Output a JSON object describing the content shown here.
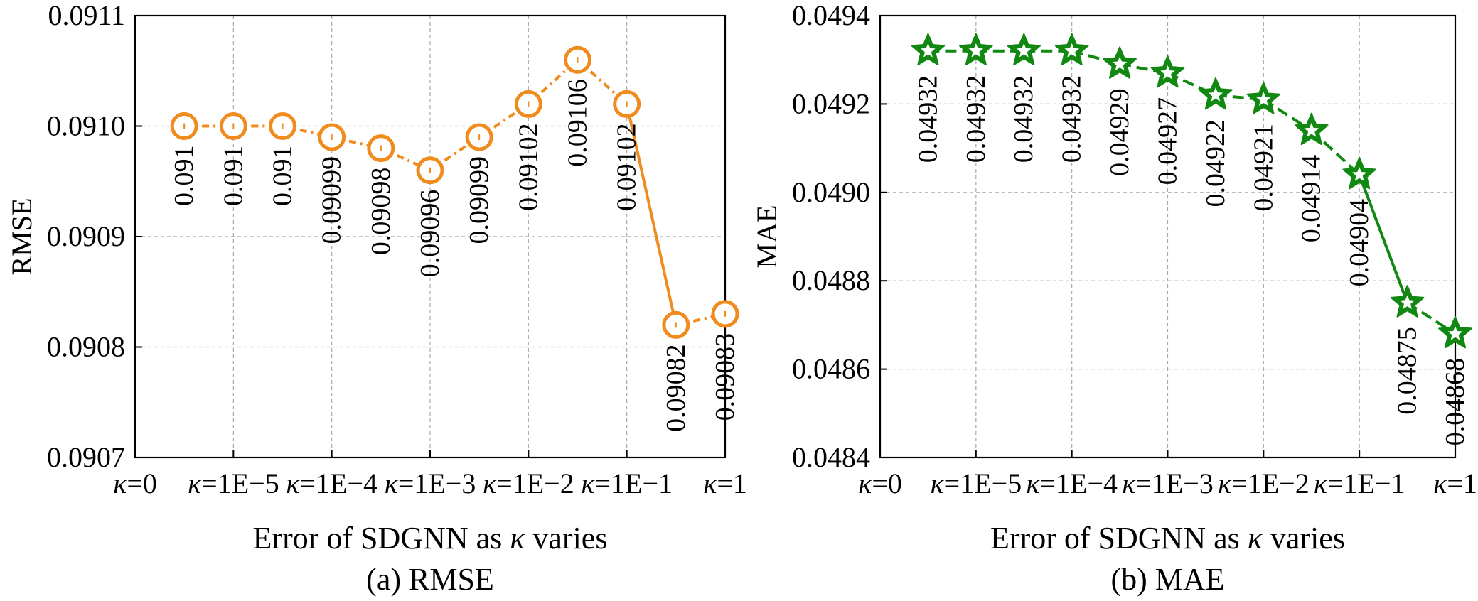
{
  "chart_data": [
    {
      "type": "line",
      "caption": "(a) RMSE",
      "xlabel": "Error of SDGNN as κ varies",
      "ylabel": "RMSE",
      "ylim": [
        0.0907,
        0.0911
      ],
      "yticks": [
        "0.0907",
        "0.0908",
        "0.0909",
        "0.0910",
        "0.0911"
      ],
      "xticks": [
        "κ=0",
        "κ=1E−5",
        "κ=1E−4",
        "κ=1E−3",
        "κ=1E−2",
        "κ=1E−1",
        "κ=1"
      ],
      "grid": true,
      "marker": "circle",
      "color": "#f08c1e",
      "series": [
        {
          "x": [
            0.5,
            1,
            1.5,
            2,
            2.5,
            3,
            3.5,
            4,
            4.5,
            5,
            5.5,
            6
          ],
          "values": [
            0.091,
            0.091,
            0.091,
            0.09099,
            0.09098,
            0.09096,
            0.09099,
            0.09102,
            0.09106,
            0.09102,
            0.09082,
            0.09083
          ],
          "labels": [
            "0.091",
            "0.091",
            "0.091",
            "0.09099",
            "0.09098",
            "0.09096",
            "0.09099",
            "0.09102",
            "0.09106",
            "0.09102",
            "0.09082",
            "0.09083"
          ]
        }
      ]
    },
    {
      "type": "line",
      "caption": "(b) MAE",
      "xlabel": "Error of SDGNN as κ varies",
      "ylabel": "MAE",
      "ylim": [
        0.0484,
        0.0494
      ],
      "yticks": [
        "0.0484",
        "0.0486",
        "0.0488",
        "0.0490",
        "0.0492",
        "0.0494"
      ],
      "xticks": [
        "κ=0",
        "κ=1E−5",
        "κ=1E−4",
        "κ=1E−3",
        "κ=1E−2",
        "κ=1E−1",
        "κ=1"
      ],
      "grid": true,
      "marker": "star",
      "color": "#118811",
      "series": [
        {
          "x": [
            0.5,
            1,
            1.5,
            2,
            2.5,
            3,
            3.5,
            4,
            4.5,
            5,
            5.5,
            6
          ],
          "values": [
            0.04932,
            0.04932,
            0.04932,
            0.04932,
            0.04929,
            0.04927,
            0.04922,
            0.04921,
            0.04914,
            0.04904,
            0.04875,
            0.04868
          ],
          "labels": [
            "0.04932",
            "0.04932",
            "0.04932",
            "0.04932",
            "0.04929",
            "0.04927",
            "0.04922",
            "0.04921",
            "0.04914",
            "0.04904",
            "0.04875",
            "0.04868"
          ]
        }
      ]
    }
  ]
}
